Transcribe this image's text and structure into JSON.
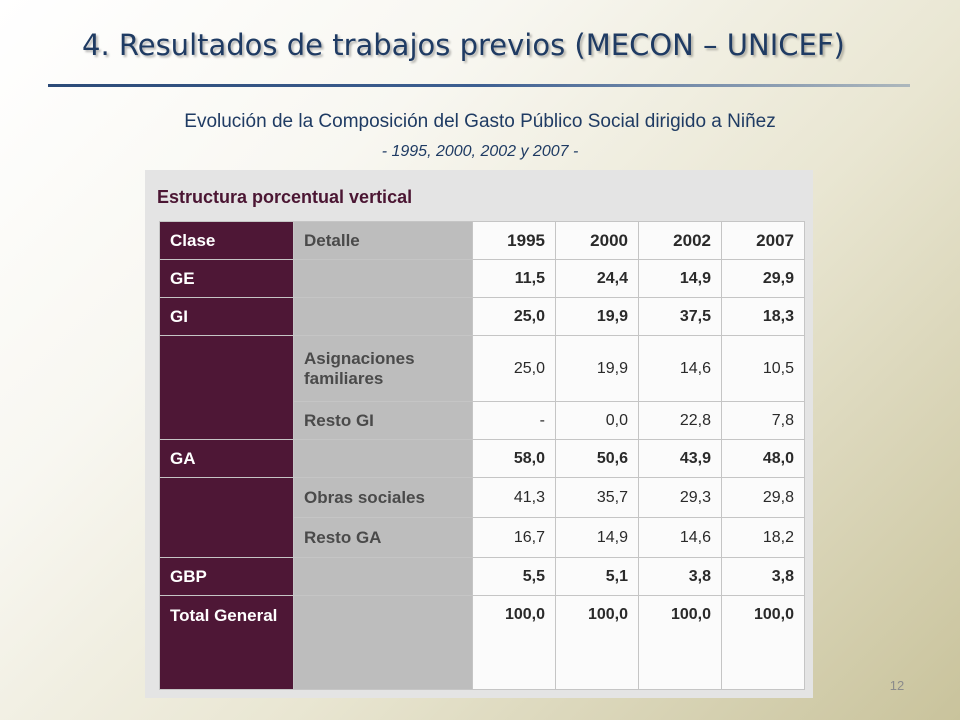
{
  "slide": {
    "title": "4. Resultados de trabajos previos (MECON – UNICEF)",
    "subtitle": "Evolución de la Composición del Gasto Público Social dirigido a Niñez",
    "years_line": "- 1995, 2000, 2002 y 2007 -",
    "page_number": "12"
  },
  "table": {
    "caption": "Estructura porcentual vertical",
    "headers": {
      "clase": "Clase",
      "detalle": "Detalle",
      "years": [
        "1995",
        "2000",
        "2002",
        "2007"
      ]
    },
    "rows": [
      {
        "clase": "GE",
        "detalle": "",
        "values": [
          "11,5",
          "24,4",
          "14,9",
          "29,9"
        ]
      },
      {
        "clase": "GI",
        "detalle": "",
        "values": [
          "25,0",
          "19,9",
          "37,5",
          "18,3"
        ]
      },
      {
        "clase": "",
        "detalle": "Asignaciones familiares",
        "values": [
          "25,0",
          "19,9",
          "14,6",
          "10,5"
        ]
      },
      {
        "clase": "",
        "detalle": "Resto GI",
        "values": [
          "-",
          "0,0",
          "22,8",
          "7,8"
        ]
      },
      {
        "clase": "GA",
        "detalle": "",
        "values": [
          "58,0",
          "50,6",
          "43,9",
          "48,0"
        ]
      },
      {
        "clase": "",
        "detalle": "Obras sociales",
        "values": [
          "41,3",
          "35,7",
          "29,3",
          "29,8"
        ]
      },
      {
        "clase": "",
        "detalle": "Resto GA",
        "values": [
          "16,7",
          "14,9",
          "14,6",
          "18,2"
        ]
      },
      {
        "clase": "GBP",
        "detalle": "",
        "values": [
          "5,5",
          "5,1",
          "3,8",
          "3,8"
        ]
      },
      {
        "clase": "Total General",
        "detalle": "",
        "values": [
          "100,0",
          "100,0",
          "100,0",
          "100,0"
        ]
      }
    ]
  }
}
